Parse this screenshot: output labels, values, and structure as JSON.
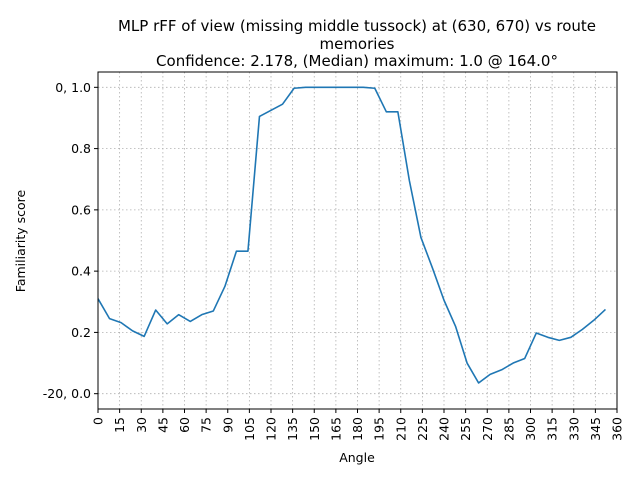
{
  "chart_data": {
    "type": "line",
    "title": [
      "MLP rFF of view (missing middle tussock) at (630, 670) vs route",
      "memories",
      "Confidence: 2.178, (Median) maximum: 1.0 @ 164.0°"
    ],
    "xlabel": "Angle",
    "ylabel": "Familiarity score",
    "xlim": [
      0,
      360
    ],
    "ylim": [
      -0.05,
      1.05
    ],
    "grid": true,
    "xticks": [
      0,
      15,
      30,
      45,
      60,
      75,
      90,
      105,
      120,
      135,
      150,
      165,
      180,
      195,
      210,
      225,
      240,
      255,
      270,
      285,
      300,
      315,
      330,
      345,
      360
    ],
    "xtick_labels": [
      "0",
      "15",
      "30",
      "45",
      "60",
      "75",
      "90",
      "105",
      "120",
      "135",
      "150",
      "165",
      "180",
      "195",
      "210",
      "225",
      "240",
      "255",
      "270",
      "285",
      "300",
      "315",
      "330",
      "345",
      "360"
    ],
    "yticks": [
      0.0,
      0.2,
      0.4,
      0.6,
      0.8,
      1.0
    ],
    "ytick_labels": [
      "-20, 0.0",
      "0.2",
      "0.4",
      "0.6",
      "0.8",
      "0, 1.0"
    ],
    "series": [
      {
        "color": "#1f77b4",
        "x": [
          0,
          8,
          16,
          24,
          32,
          40,
          48,
          56,
          64,
          72,
          80,
          88,
          96,
          104,
          112,
          120,
          128,
          136,
          144,
          152,
          160,
          168,
          176,
          184,
          192,
          200,
          208,
          216,
          224,
          232,
          240,
          248,
          256,
          264,
          272,
          280,
          288,
          296,
          304,
          312,
          320,
          328,
          336,
          344,
          352
        ],
        "values": [
          0.31,
          0.245,
          0.232,
          0.205,
          0.187,
          0.273,
          0.228,
          0.258,
          0.236,
          0.258,
          0.27,
          0.35,
          0.465,
          0.465,
          0.905,
          0.925,
          0.945,
          0.997,
          1.0,
          1.0,
          1.0,
          1.0,
          1.0,
          1.0,
          0.997,
          0.92,
          0.92,
          0.695,
          0.51,
          0.41,
          0.305,
          0.22,
          0.1,
          0.035,
          0.063,
          0.078,
          0.1,
          0.115,
          0.198,
          0.184,
          0.174,
          0.184,
          0.21,
          0.24,
          0.275
        ]
      }
    ]
  }
}
